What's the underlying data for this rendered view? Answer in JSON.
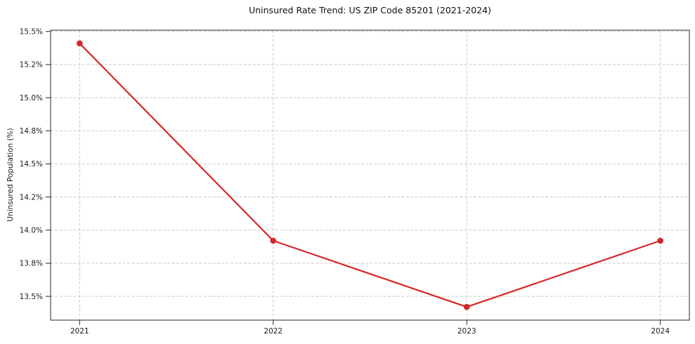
{
  "chart_data": {
    "type": "line",
    "title": "Uninsured Rate Trend: US ZIP Code 85201 (2021-2024)",
    "xlabel": "",
    "ylabel": "Uninsured Population (%)",
    "x": [
      2021,
      2022,
      2023,
      2024
    ],
    "values": [
      15.41,
      13.92,
      13.42,
      13.92
    ],
    "xlim": [
      2020.85,
      2024.15
    ],
    "ylim": [
      13.3205,
      15.5095
    ],
    "xticks": [
      {
        "value": 2021,
        "label": "2021"
      },
      {
        "value": 2022,
        "label": "2022"
      },
      {
        "value": 2023,
        "label": "2023"
      },
      {
        "value": 2024,
        "label": "2024"
      }
    ],
    "yticks": [
      {
        "value": 13.5,
        "label": "13.5%"
      },
      {
        "value": 13.75,
        "label": "13.8%"
      },
      {
        "value": 14.0,
        "label": "14.0%"
      },
      {
        "value": 14.25,
        "label": "14.2%"
      },
      {
        "value": 14.5,
        "label": "14.5%"
      },
      {
        "value": 14.75,
        "label": "14.8%"
      },
      {
        "value": 15.0,
        "label": "15.0%"
      },
      {
        "value": 15.25,
        "label": "15.2%"
      },
      {
        "value": 15.5,
        "label": "15.5%"
      }
    ],
    "grid": true,
    "legend": "none",
    "marker": "circle",
    "line_color": "#d62728",
    "grid_color": "#c9c9c9",
    "background": "#ffffff"
  }
}
